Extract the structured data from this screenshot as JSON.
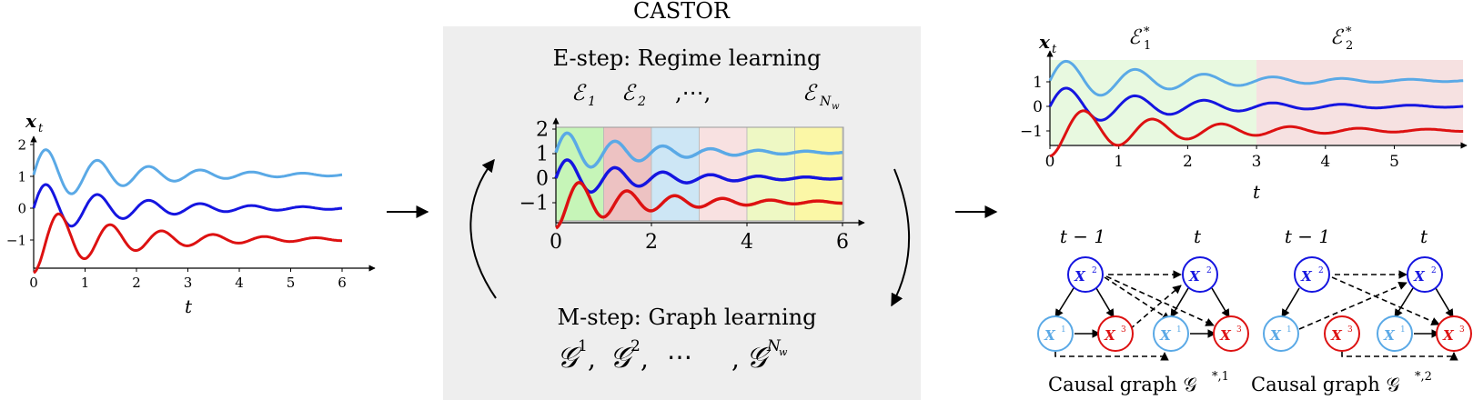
{
  "title": "CASTOR",
  "colors": {
    "light_blue": "#5aa9e6",
    "blue": "#1515e0",
    "red": "#dd1111",
    "panel_bg": "#eeeeee"
  },
  "left_plot": {
    "ylabel": "x",
    "ylabel_sub": "t",
    "xlabel": "t",
    "yticks": [
      "2",
      "1",
      "0",
      "−1"
    ],
    "xticks": [
      "0",
      "1",
      "2",
      "3",
      "4",
      "5",
      "6"
    ]
  },
  "estep": {
    "title": "E-step: Regime learning",
    "regime_labels": [
      "ℰ",
      "ℰ",
      ",⋯,",
      "ℰ"
    ],
    "regime_subs": [
      "1",
      "2",
      "",
      "N"
    ],
    "regime_subsub": "w",
    "yticks": [
      "2",
      "1",
      "0",
      "−1"
    ],
    "xticks": [
      "0",
      "2",
      "4",
      "6"
    ],
    "regime_colors": [
      "#c6f5b8",
      "#edc2c2",
      "#cde6f5",
      "#f8e1e1",
      "#eef8c4",
      "#fbf7a6"
    ]
  },
  "mstep": {
    "title": "M-step: Graph learning",
    "graph_letter": "𝒢",
    "graph_sups": [
      "1",
      "2",
      "N"
    ],
    "graph_sup_sub": "w",
    "separators": [
      ",",
      ",",
      "⋯",
      ","
    ]
  },
  "right_plot": {
    "ylabel": "x",
    "ylabel_sub": "t",
    "xlabel": "t",
    "regime1": "ℰ",
    "regime1_sub": "1",
    "regime2": "ℰ",
    "regime2_sub": "2",
    "regime_sup": "*",
    "yticks": [
      "1",
      "0",
      "−1"
    ],
    "xticks": [
      "0",
      "1",
      "2",
      "3",
      "4",
      "5"
    ],
    "region_colors": [
      "#e8f9e0",
      "#f6e1e1"
    ]
  },
  "graphs": [
    {
      "time_left": "t − 1",
      "time_right": "t",
      "caption": "Causal graph 𝒢",
      "caption_sup": "*,1",
      "nodes": {
        "x2": "X",
        "x2_sup": "2",
        "x1": "X",
        "x1_sup": "1",
        "x3": "X",
        "x3_sup": "3"
      }
    },
    {
      "time_left": "t − 1",
      "time_right": "t",
      "caption": "Causal graph 𝒢",
      "caption_sup": "*,2",
      "nodes": {
        "x2": "X",
        "x2_sup": "2",
        "x1": "X",
        "x1_sup": "1",
        "x3": "X",
        "x3_sup": "3"
      }
    }
  ]
}
